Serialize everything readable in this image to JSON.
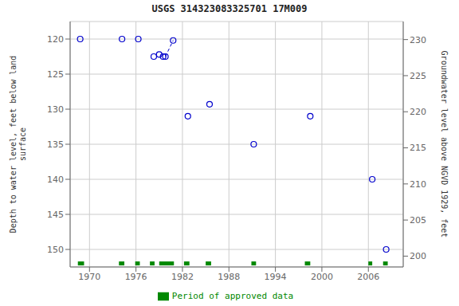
{
  "chart_data": {
    "type": "scatter",
    "title": "USGS 314323083325701 17M009",
    "ylabel": "Depth to water level, feet below land\nsurface",
    "y2label": "Groundwater level above NGVD 1929, feet",
    "x": [
      1968.8,
      1974.2,
      1976.3,
      1978.3,
      1979.0,
      1979.5,
      1979.8,
      1980.8,
      1982.7,
      1985.5,
      1991.2,
      1998.5,
      2006.5,
      2008.3
    ],
    "series": [
      {
        "values": [
          120.0,
          120.0,
          120.0,
          122.5,
          122.2,
          122.5,
          122.5,
          120.2,
          131.0,
          129.3,
          135.0,
          131.0,
          140.0,
          150.0
        ],
        "color": "#0000cc",
        "marker": "circle"
      }
    ],
    "dashed_segment": {
      "x": [
        1979.8,
        1980.8
      ],
      "y": [
        122.5,
        120.2
      ],
      "color": "#0000cc",
      "line_style": "dashed"
    },
    "approved_periods": {
      "name": "Period of approved data",
      "color": "#008800",
      "ranges": [
        [
          1968.5,
          1969.3
        ],
        [
          1973.8,
          1974.5
        ],
        [
          1975.9,
          1976.5
        ],
        [
          1977.8,
          1978.4
        ],
        [
          1979.0,
          1980.9
        ],
        [
          1982.2,
          1982.9
        ],
        [
          1985.0,
          1985.7
        ],
        [
          1990.9,
          1991.5
        ],
        [
          1997.8,
          1998.5
        ],
        [
          2006.0,
          2006.5
        ],
        [
          2007.9,
          2008.5
        ]
      ],
      "y": 152.0
    },
    "xlim": [
      1967.5,
      2010.5
    ],
    "xticks": [
      1970,
      1976,
      1982,
      1988,
      1994,
      2000,
      2006
    ],
    "ylim": [
      152.5,
      117.5
    ],
    "yticks": [
      120,
      125,
      130,
      135,
      140,
      145,
      150
    ],
    "y2lim": [
      198.5,
      232.5
    ],
    "y2ticks": [
      230,
      225,
      220,
      215,
      210,
      205,
      200
    ],
    "grid": true,
    "legend": "bottom"
  }
}
